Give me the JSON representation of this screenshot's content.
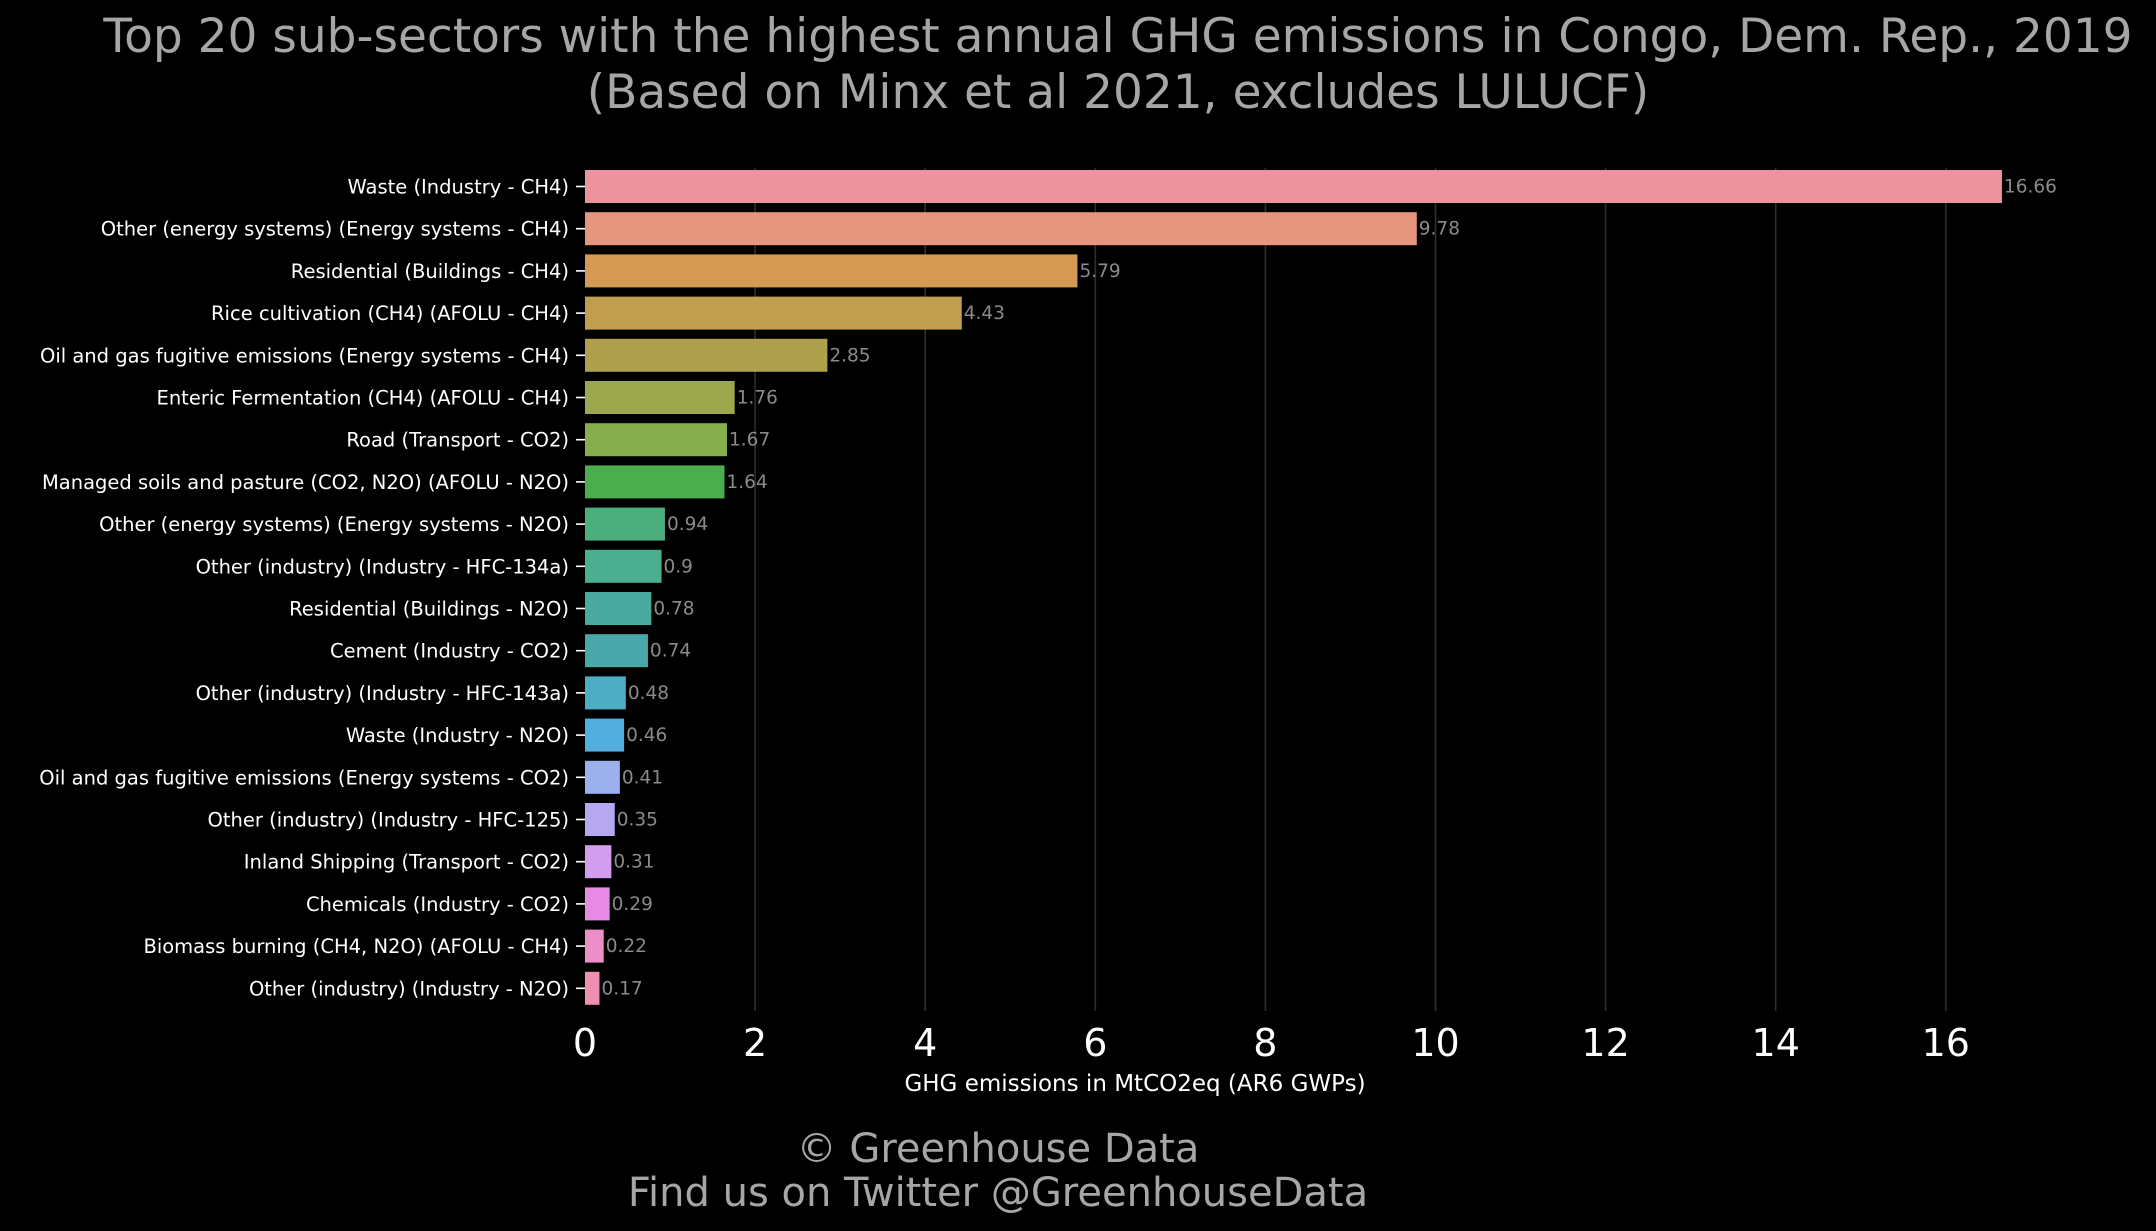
{
  "chart_data": {
    "type": "bar",
    "orientation": "horizontal",
    "title_lines": [
      "Top 20 sub-sectors with the highest annual GHG emissions in Congo, Dem. Rep., 2019",
      "(Based on Minx et al 2021, excludes LULUCF)"
    ],
    "xlabel": "GHG emissions in MtCO2eq (AR6 GWPs)",
    "ylabel": "",
    "xlim": [
      0,
      17.5
    ],
    "x_ticks": [
      0,
      2,
      4,
      6,
      8,
      10,
      12,
      14,
      16
    ],
    "grid": true,
    "categories": [
      "Waste (Industry - CH4)",
      "Other (energy systems) (Energy systems - CH4)",
      "Residential (Buildings - CH4)",
      "Rice cultivation (CH4) (AFOLU - CH4)",
      "Oil and gas fugitive emissions (Energy systems - CH4)",
      "Enteric Fermentation (CH4) (AFOLU - CH4)",
      "Road (Transport - CO2)",
      "Managed soils and pasture (CO2, N2O) (AFOLU - N2O)",
      "Other (energy systems) (Energy systems - N2O)",
      "Other (industry) (Industry - HFC-134a)",
      "Residential (Buildings - N2O)",
      "Cement (Industry - CO2)",
      "Other (industry) (Industry - HFC-143a)",
      "Waste (Industry - N2O)",
      "Oil and gas fugitive emissions (Energy systems - CO2)",
      "Other (industry) (Industry - HFC-125)",
      "Inland Shipping (Transport - CO2)",
      "Chemicals (Industry - CO2)",
      "Biomass burning (CH4, N2O) (AFOLU - CH4)",
      "Other (industry) (Industry - N2O)"
    ],
    "values": [
      16.66,
      9.78,
      5.79,
      4.43,
      2.85,
      1.76,
      1.67,
      1.64,
      0.94,
      0.9,
      0.78,
      0.74,
      0.48,
      0.46,
      0.41,
      0.35,
      0.31,
      0.29,
      0.22,
      0.17
    ],
    "value_labels": [
      "16.66",
      "9.78",
      "5.79",
      "4.43",
      "2.85",
      "1.76",
      "1.67",
      "1.64",
      "0.94",
      "0.9",
      "0.78",
      "0.74",
      "0.48",
      "0.46",
      "0.41",
      "0.35",
      "0.31",
      "0.29",
      "0.22",
      "0.17"
    ],
    "colors": [
      "#ec939f",
      "#e6957f",
      "#d49a54",
      "#c09e4d",
      "#aea04c",
      "#9da84e",
      "#87ae4d",
      "#4aae4f",
      "#4aae7d",
      "#4bae91",
      "#4aaaa0",
      "#4aa8aa",
      "#4cadc4",
      "#54addf",
      "#9cb0ee",
      "#b6a8f0",
      "#d29ded",
      "#e68ae3",
      "#ed8ec6",
      "#ef8fb4"
    ]
  },
  "footer": {
    "line1": "© Greenhouse Data",
    "line2": "Find us on Twitter @GreenhouseData"
  },
  "style": {
    "background": "#000000",
    "title_color": "#a6a6a6",
    "grid_color": "#2e2e2e"
  }
}
